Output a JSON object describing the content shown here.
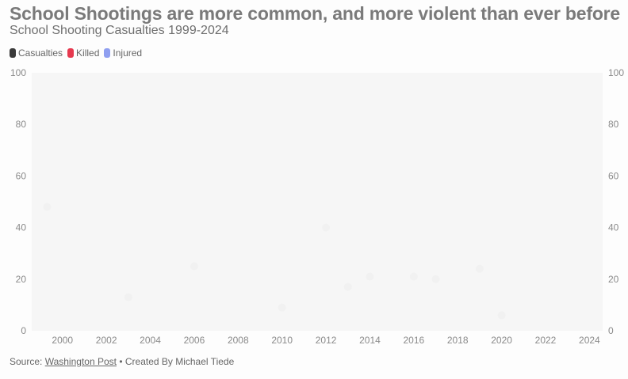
{
  "title": "School Shootings are more common, and more violent than ever before",
  "subtitle": "School Shooting Casualties 1999-2024",
  "legend": [
    {
      "label": "Casualties",
      "color": "#3a3a3a"
    },
    {
      "label": "Killed",
      "color": "#e6394f"
    },
    {
      "label": "Injured",
      "color": "#8f9ff0"
    }
  ],
  "footer": {
    "prefix": "Source: ",
    "source_link": "Washington Post",
    "suffix": " • Created By Michael Tiede"
  },
  "chart_data": {
    "type": "scatter",
    "title": "School Shooting Casualties 1999-2024",
    "x_ticks": [
      "2000",
      "2002",
      "2004",
      "2006",
      "2008",
      "2010",
      "2012",
      "2014",
      "2016",
      "2018",
      "2020",
      "2022",
      "2024"
    ],
    "y_ticks": [
      "0",
      "20",
      "40",
      "60",
      "80",
      "100"
    ],
    "xlim": [
      1998.6,
      2024.6
    ],
    "ylim": [
      0,
      100
    ],
    "grid": false,
    "legend_position": "top-left",
    "series": [
      {
        "name": "Casualties",
        "color": "#f1f1f1",
        "points": [
          {
            "x": 1999.3,
            "y": 48
          },
          {
            "x": 2003.0,
            "y": 13
          },
          {
            "x": 2006.0,
            "y": 25
          },
          {
            "x": 2010.0,
            "y": 9
          },
          {
            "x": 2012.0,
            "y": 40
          },
          {
            "x": 2013.0,
            "y": 17
          },
          {
            "x": 2014.0,
            "y": 21
          },
          {
            "x": 2016.0,
            "y": 21
          },
          {
            "x": 2017.0,
            "y": 20
          },
          {
            "x": 2019.0,
            "y": 24
          },
          {
            "x": 2020.0,
            "y": 6
          }
        ]
      }
    ]
  }
}
